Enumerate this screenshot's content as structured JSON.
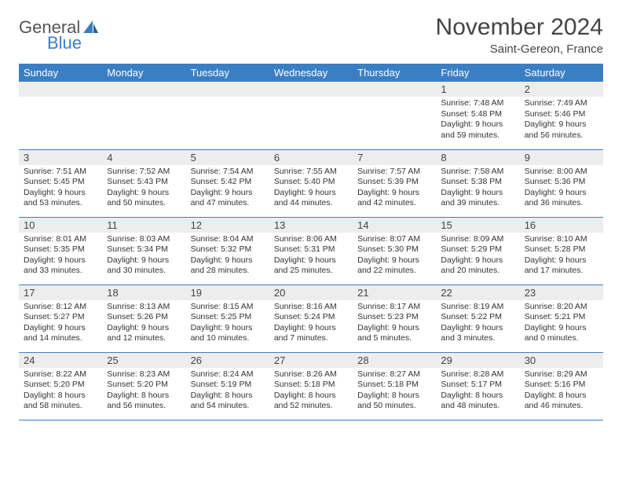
{
  "brand": {
    "part1": "General",
    "part2": "Blue"
  },
  "header": {
    "title": "November 2024",
    "location": "Saint-Gereon, France"
  },
  "colors": {
    "header_bar": "#3a7fc4",
    "daynum_bg": "#ededed",
    "rule": "#3a7fc4",
    "text": "#333333",
    "logo_gray": "#555555",
    "logo_blue": "#3a7fc4"
  },
  "dow": [
    "Sunday",
    "Monday",
    "Tuesday",
    "Wednesday",
    "Thursday",
    "Friday",
    "Saturday"
  ],
  "weeks": [
    [
      null,
      null,
      null,
      null,
      null,
      {
        "n": "1",
        "sr": "7:48 AM",
        "ss": "5:48 PM",
        "dl": "9 hours and 59 minutes."
      },
      {
        "n": "2",
        "sr": "7:49 AM",
        "ss": "5:46 PM",
        "dl": "9 hours and 56 minutes."
      }
    ],
    [
      {
        "n": "3",
        "sr": "7:51 AM",
        "ss": "5:45 PM",
        "dl": "9 hours and 53 minutes."
      },
      {
        "n": "4",
        "sr": "7:52 AM",
        "ss": "5:43 PM",
        "dl": "9 hours and 50 minutes."
      },
      {
        "n": "5",
        "sr": "7:54 AM",
        "ss": "5:42 PM",
        "dl": "9 hours and 47 minutes."
      },
      {
        "n": "6",
        "sr": "7:55 AM",
        "ss": "5:40 PM",
        "dl": "9 hours and 44 minutes."
      },
      {
        "n": "7",
        "sr": "7:57 AM",
        "ss": "5:39 PM",
        "dl": "9 hours and 42 minutes."
      },
      {
        "n": "8",
        "sr": "7:58 AM",
        "ss": "5:38 PM",
        "dl": "9 hours and 39 minutes."
      },
      {
        "n": "9",
        "sr": "8:00 AM",
        "ss": "5:36 PM",
        "dl": "9 hours and 36 minutes."
      }
    ],
    [
      {
        "n": "10",
        "sr": "8:01 AM",
        "ss": "5:35 PM",
        "dl": "9 hours and 33 minutes."
      },
      {
        "n": "11",
        "sr": "8:03 AM",
        "ss": "5:34 PM",
        "dl": "9 hours and 30 minutes."
      },
      {
        "n": "12",
        "sr": "8:04 AM",
        "ss": "5:32 PM",
        "dl": "9 hours and 28 minutes."
      },
      {
        "n": "13",
        "sr": "8:06 AM",
        "ss": "5:31 PM",
        "dl": "9 hours and 25 minutes."
      },
      {
        "n": "14",
        "sr": "8:07 AM",
        "ss": "5:30 PM",
        "dl": "9 hours and 22 minutes."
      },
      {
        "n": "15",
        "sr": "8:09 AM",
        "ss": "5:29 PM",
        "dl": "9 hours and 20 minutes."
      },
      {
        "n": "16",
        "sr": "8:10 AM",
        "ss": "5:28 PM",
        "dl": "9 hours and 17 minutes."
      }
    ],
    [
      {
        "n": "17",
        "sr": "8:12 AM",
        "ss": "5:27 PM",
        "dl": "9 hours and 14 minutes."
      },
      {
        "n": "18",
        "sr": "8:13 AM",
        "ss": "5:26 PM",
        "dl": "9 hours and 12 minutes."
      },
      {
        "n": "19",
        "sr": "8:15 AM",
        "ss": "5:25 PM",
        "dl": "9 hours and 10 minutes."
      },
      {
        "n": "20",
        "sr": "8:16 AM",
        "ss": "5:24 PM",
        "dl": "9 hours and 7 minutes."
      },
      {
        "n": "21",
        "sr": "8:17 AM",
        "ss": "5:23 PM",
        "dl": "9 hours and 5 minutes."
      },
      {
        "n": "22",
        "sr": "8:19 AM",
        "ss": "5:22 PM",
        "dl": "9 hours and 3 minutes."
      },
      {
        "n": "23",
        "sr": "8:20 AM",
        "ss": "5:21 PM",
        "dl": "9 hours and 0 minutes."
      }
    ],
    [
      {
        "n": "24",
        "sr": "8:22 AM",
        "ss": "5:20 PM",
        "dl": "8 hours and 58 minutes."
      },
      {
        "n": "25",
        "sr": "8:23 AM",
        "ss": "5:20 PM",
        "dl": "8 hours and 56 minutes."
      },
      {
        "n": "26",
        "sr": "8:24 AM",
        "ss": "5:19 PM",
        "dl": "8 hours and 54 minutes."
      },
      {
        "n": "27",
        "sr": "8:26 AM",
        "ss": "5:18 PM",
        "dl": "8 hours and 52 minutes."
      },
      {
        "n": "28",
        "sr": "8:27 AM",
        "ss": "5:18 PM",
        "dl": "8 hours and 50 minutes."
      },
      {
        "n": "29",
        "sr": "8:28 AM",
        "ss": "5:17 PM",
        "dl": "8 hours and 48 minutes."
      },
      {
        "n": "30",
        "sr": "8:29 AM",
        "ss": "5:16 PM",
        "dl": "8 hours and 46 minutes."
      }
    ]
  ],
  "labels": {
    "sunrise": "Sunrise: ",
    "sunset": "Sunset: ",
    "daylight": "Daylight: "
  }
}
